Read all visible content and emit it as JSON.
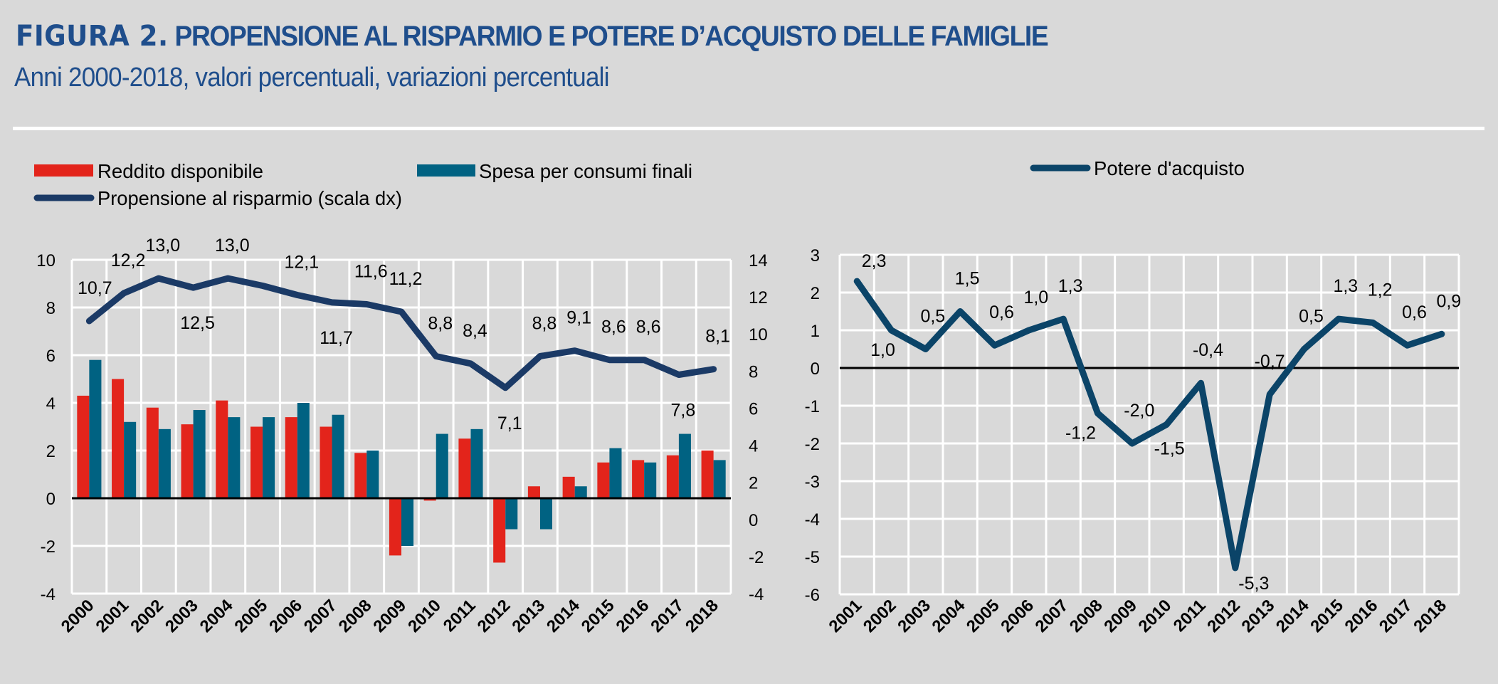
{
  "header": {
    "figure_label": "FIGURA 2.",
    "title": "PROPENSIONE AL RISPARMIO E POTERE D’ACQUISTO DELLE FAMIGLIE",
    "subtitle": "Anni 2000-2018, valori percentuali, variazioni percentuali"
  },
  "colors": {
    "title": "#1f4e8c",
    "reddito": "#e3241b",
    "spesa": "#006282",
    "propensione": "#1b3a66",
    "potere": "#0b4468",
    "grid": "#ffffff",
    "background": "#d9d9d9"
  },
  "chart_data": [
    {
      "type": "bar",
      "title": "",
      "xlabel": "",
      "ylabel": "",
      "categories": [
        "2000",
        "2001",
        "2002",
        "2003",
        "2004",
        "2005",
        "2006",
        "2007",
        "2008",
        "2009",
        "2010",
        "2011",
        "2012",
        "2013",
        "2014",
        "2015",
        "2016",
        "2017",
        "2018"
      ],
      "legend": [
        "Reddito disponibile",
        "Spesa per consumi finali",
        "Propensione al risparmio (scala dx)"
      ],
      "legend_position": "top-left",
      "ylim": [
        -4,
        10
      ],
      "yticks": [
        "10",
        "8",
        "6",
        "4",
        "2",
        "0",
        "-2",
        "-4"
      ],
      "y2lim": [
        -4,
        14
      ],
      "y2ticks": [
        "14",
        "12",
        "10",
        "8",
        "6",
        "4",
        "2",
        "0",
        "-2",
        "-4"
      ],
      "grid": true,
      "series": [
        {
          "name": "Reddito disponibile",
          "kind": "bar",
          "axis": "left",
          "values": [
            4.3,
            5.0,
            3.8,
            3.1,
            4.1,
            3.0,
            3.4,
            3.0,
            1.9,
            -2.4,
            -0.1,
            2.5,
            -2.7,
            0.5,
            0.9,
            1.5,
            1.6,
            1.8,
            2.0
          ]
        },
        {
          "name": "Spesa per consumi finali",
          "kind": "bar",
          "axis": "left",
          "values": [
            5.8,
            3.2,
            2.9,
            3.7,
            3.4,
            3.4,
            4.0,
            3.5,
            2.0,
            -2.0,
            2.7,
            2.9,
            -1.3,
            -1.3,
            0.5,
            2.1,
            1.5,
            2.7,
            1.6
          ]
        },
        {
          "name": "Propensione al risparmio (scala dx)",
          "kind": "line",
          "axis": "right",
          "values": [
            10.7,
            12.2,
            13.0,
            12.5,
            13.0,
            12.6,
            12.1,
            11.7,
            11.6,
            11.2,
            8.8,
            8.4,
            7.1,
            8.8,
            9.1,
            8.6,
            8.6,
            7.8,
            8.1
          ],
          "labels": [
            "10,7",
            "12,2",
            "13,0",
            "12,5",
            "13,0",
            "",
            "12,1",
            "11,7",
            "11,6",
            "11,2",
            "8,8",
            "8,4",
            "7,1",
            "8,8",
            "9,1",
            "8,6",
            "8,6",
            "7,8",
            "8,1"
          ],
          "label_side": [
            "above",
            "above",
            "above",
            "below",
            "above",
            "above",
            "above",
            "below",
            "above",
            "above",
            "above",
            "above",
            "below",
            "above",
            "above",
            "above",
            "above",
            "below",
            "above"
          ]
        }
      ]
    },
    {
      "type": "line",
      "title": "",
      "xlabel": "",
      "ylabel": "",
      "categories": [
        "2001",
        "2002",
        "2003",
        "2004",
        "2005",
        "2006",
        "2007",
        "2008",
        "2009",
        "2010",
        "2011",
        "2012",
        "2013",
        "2014",
        "2015",
        "2016",
        "2017",
        "2018"
      ],
      "legend": [
        "Potere d'acquisto"
      ],
      "legend_position": "top-center",
      "ylim": [
        -6,
        3
      ],
      "yticks": [
        "3",
        "2",
        "1",
        "0",
        "-1",
        "-2",
        "-3",
        "-4",
        "-5",
        "-6"
      ],
      "grid": true,
      "series": [
        {
          "name": "Potere d'acquisto",
          "values": [
            2.3,
            1.0,
            0.5,
            1.5,
            0.6,
            1.0,
            1.3,
            -1.2,
            -2.0,
            -1.5,
            -0.4,
            -5.3,
            -0.7,
            0.5,
            1.3,
            1.2,
            0.6,
            0.9
          ],
          "labels": [
            "2,3",
            "1,0",
            "0,5",
            "1,5",
            "0,6",
            "1,0",
            "1,3",
            "-1,2",
            "-2,0",
            "-1,5",
            "-0,4",
            "-5,3",
            "-0,7",
            "0,5",
            "1,3",
            "1,2",
            "0,6",
            "0,9"
          ],
          "label_side": [
            "above",
            "below",
            "above",
            "above",
            "above",
            "above",
            "above",
            "below",
            "above",
            "below",
            "above",
            "below",
            "above",
            "above",
            "above",
            "above",
            "above",
            "above"
          ]
        }
      ]
    }
  ]
}
